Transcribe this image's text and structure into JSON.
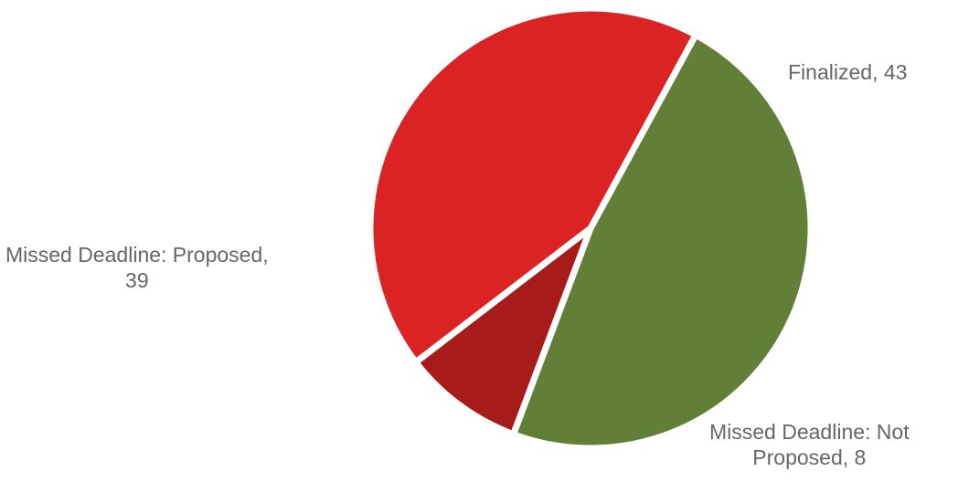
{
  "chart_data": {
    "type": "pie",
    "title": "",
    "slices": [
      {
        "label": "Finalized",
        "value": 43,
        "color": "#627f38",
        "text_lines": [
          "Finalized, 43"
        ]
      },
      {
        "label": "Missed Deadline: Not Proposed",
        "value": 8,
        "color": "#a81b1b",
        "text_lines": [
          "Missed Deadline: Not",
          "Proposed, 8"
        ]
      },
      {
        "label": "Missed Deadline: Proposed",
        "value": 39,
        "color": "#db2324",
        "text_lines": [
          "Missed Deadline: Proposed,",
          "39"
        ]
      }
    ],
    "start_angle_deg": -61.5,
    "direction": "clockwise",
    "legend": "none",
    "data_labels": "outside"
  }
}
